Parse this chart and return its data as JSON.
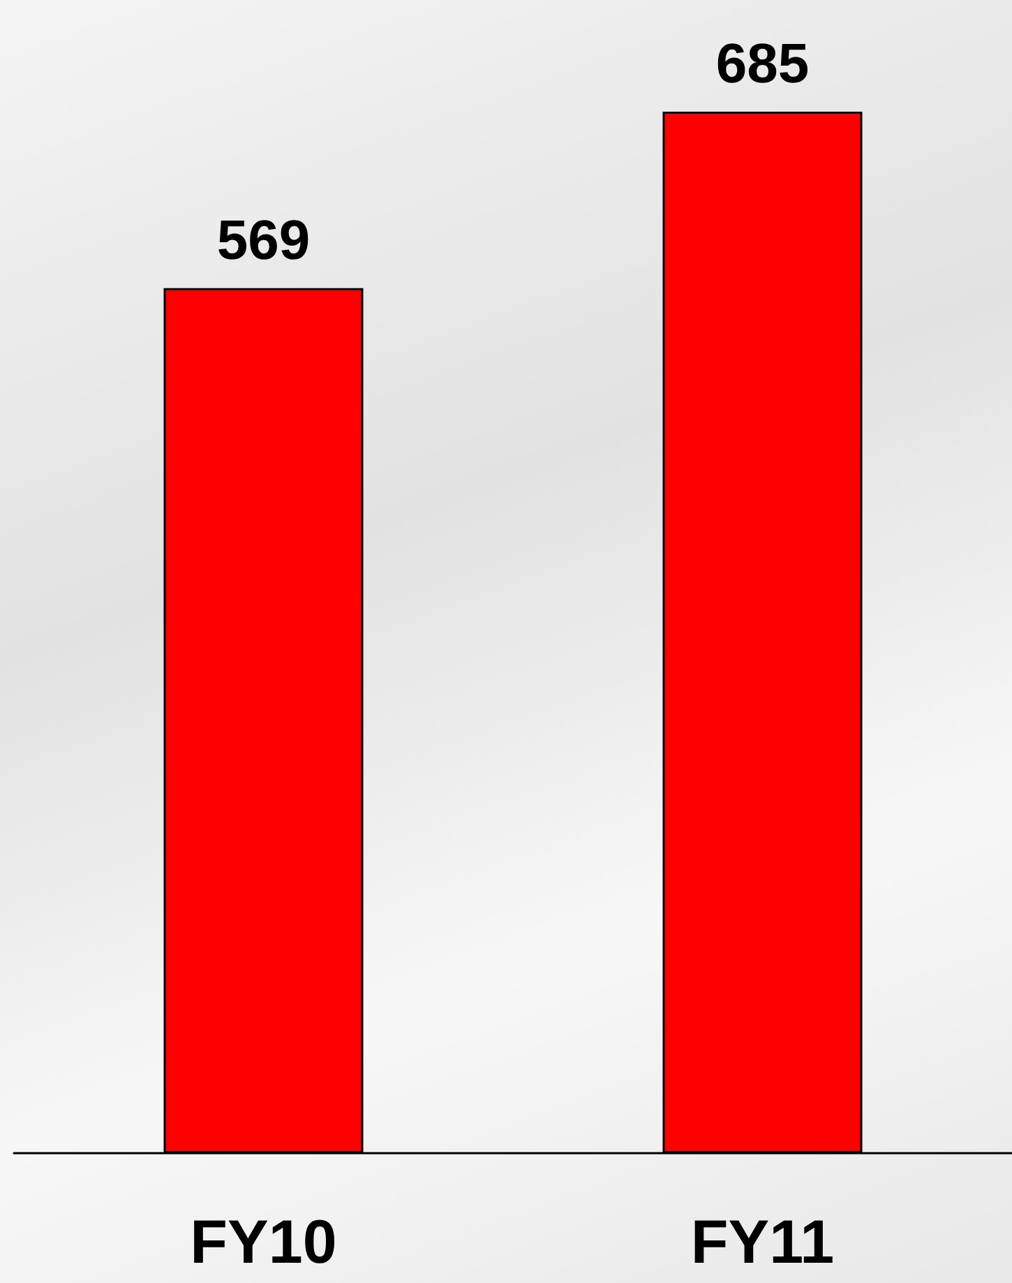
{
  "chart_data": {
    "type": "bar",
    "categories": [
      "FY10",
      "FY11"
    ],
    "values": [
      569,
      685
    ],
    "color": "#ff0000",
    "data_labels": true
  }
}
